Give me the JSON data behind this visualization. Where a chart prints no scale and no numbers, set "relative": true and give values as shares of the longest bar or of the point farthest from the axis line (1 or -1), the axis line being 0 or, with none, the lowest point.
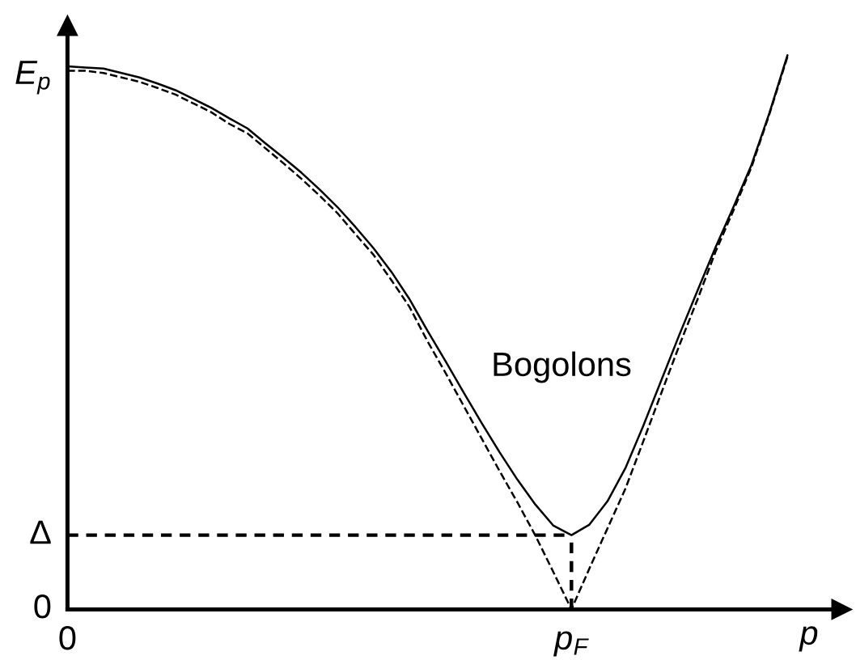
{
  "chart_data": {
    "type": "line",
    "relative": true,
    "xlabel": "p",
    "ylabel": "E$_{p}$",
    "categories": [
      "0",
      null,
      null,
      null,
      null,
      null,
      null,
      null,
      null,
      null,
      null,
      null,
      null,
      null,
      null,
      null,
      null,
      null,
      null,
      null,
      null,
      null,
      null,
      null,
      null,
      null,
      null,
      null,
      "p$_{F}$",
      null,
      null,
      null,
      null,
      null,
      null,
      null,
      null,
      null,
      null,
      null,
      null
    ],
    "series": [
      {
        "name": "Bogolons",
        "color": "#000000",
        "line_style": "solid",
        "values": [
          0.98,
          0.978,
          0.976,
          0.968,
          0.96,
          0.949,
          0.937,
          0.921,
          0.905,
          0.886,
          0.868,
          0.841,
          0.815,
          0.788,
          0.758,
          0.726,
          0.69,
          0.652,
          0.609,
          0.56,
          0.503,
          0.448,
          0.392,
          0.337,
          0.284,
          0.234,
          0.189,
          0.151,
          0.134,
          0.153,
          0.195,
          0.255,
          0.332,
          0.414,
          0.496,
          0.575,
          0.653,
          0.726,
          0.802,
          0.896,
          1.0
        ]
      },
      {
        "color": "#000000",
        "line_style": "dashed",
        "values": [
          0.972,
          0.972,
          0.968,
          0.96,
          0.952,
          0.941,
          0.929,
          0.913,
          0.897,
          0.876,
          0.859,
          0.832,
          0.805,
          0.777,
          0.747,
          0.715,
          0.677,
          0.64,
          0.594,
          0.546,
          0.484,
          0.427,
          0.368,
          0.309,
          0.25,
          0.193,
          0.133,
          0.067,
          0,
          0.074,
          0.146,
          0.218,
          0.304,
          0.391,
          0.477,
          0.559,
          0.645,
          0.72,
          0.798,
          0.894,
          0.997
        ]
      }
    ],
    "ref_lines": [
      {
        "axis": "y",
        "value": 0.134,
        "label": "Δ",
        "color": "#000000",
        "line_style": "dashed"
      },
      {
        "axis": "x",
        "value": "p$_{F}$",
        "color": "#000000",
        "line_style": "dashed"
      }
    ],
    "annotations": [
      "0"
    ]
  }
}
